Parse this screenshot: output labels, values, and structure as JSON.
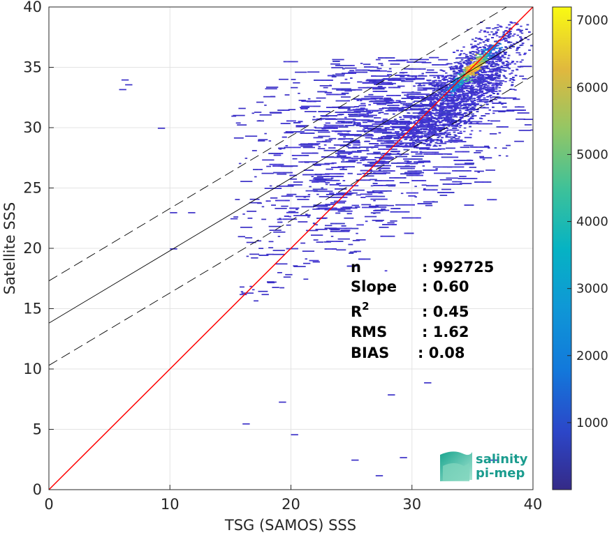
{
  "chart_data": {
    "type": "heatmap",
    "title": "",
    "xlabel": "TSG (SAMOS) SSS",
    "ylabel": "Satellite SSS",
    "xlim": [
      0,
      40
    ],
    "ylim": [
      0,
      40
    ],
    "xticks": [
      0,
      10,
      20,
      30,
      40
    ],
    "yticks": [
      0,
      5,
      10,
      15,
      20,
      25,
      30,
      35,
      40
    ],
    "grid": true,
    "density_peak": {
      "x": 35,
      "y": 35
    },
    "lines": [
      {
        "kind": "identity",
        "color": "#ff0000",
        "points": [
          [
            0,
            0
          ],
          [
            40,
            40
          ]
        ]
      },
      {
        "kind": "regression",
        "color": "#000000",
        "style": "solid",
        "points": [
          [
            0,
            13.8
          ],
          [
            40,
            37.8
          ]
        ]
      },
      {
        "kind": "regression-upper",
        "color": "#000000",
        "style": "dashed",
        "points": [
          [
            0,
            17.3
          ],
          [
            40,
            41.3
          ]
        ]
      },
      {
        "kind": "regression-lower",
        "color": "#000000",
        "style": "dashed",
        "points": [
          [
            0,
            10.3
          ],
          [
            40,
            34.3
          ]
        ]
      }
    ],
    "colorbar": {
      "colormap": "parula",
      "ticks": [
        1000,
        2000,
        3000,
        4000,
        5000,
        6000,
        7000
      ],
      "range": [
        0,
        7200
      ]
    },
    "stats": [
      {
        "key": "n",
        "value": ": 992725"
      },
      {
        "key": "Slope",
        "value": ": 0.60"
      },
      {
        "key": "R",
        "sup": "2",
        "value": ": 0.45"
      },
      {
        "key": "RMS",
        "value": ": 1.62"
      },
      {
        "key": "BIAS",
        "value": ": 0.08"
      }
    ]
  },
  "logo": {
    "line1": "salinity",
    "line2": "pi-mep"
  }
}
